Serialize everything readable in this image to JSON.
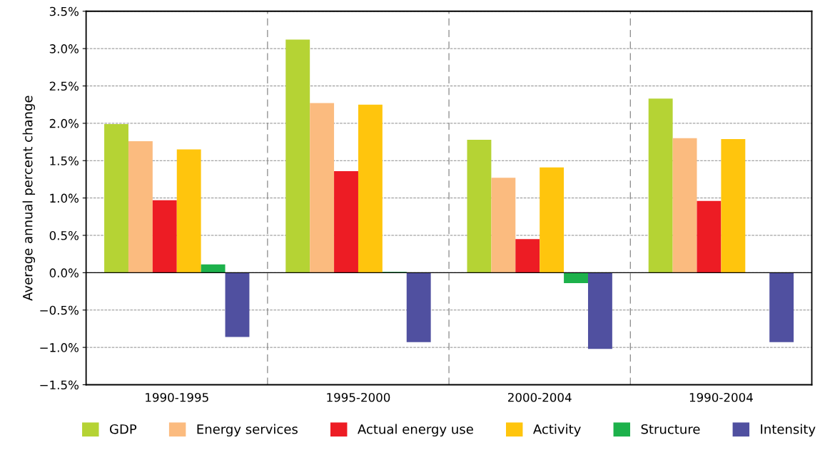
{
  "chart_data": {
    "type": "bar",
    "ylabel": "Average annual percent change",
    "categories": [
      "1990-1995",
      "1995-2000",
      "2000-2004",
      "1990-2004"
    ],
    "series": [
      {
        "name": "GDP",
        "color": "#b5d334",
        "values": [
          1.99,
          3.12,
          1.78,
          2.33
        ]
      },
      {
        "name": "Energy services",
        "color": "#fbbb7f",
        "values": [
          1.76,
          2.27,
          1.27,
          1.8
        ]
      },
      {
        "name": "Actual energy use",
        "color": "#ed1c24",
        "values": [
          0.97,
          1.36,
          0.45,
          0.96
        ]
      },
      {
        "name": "Activity",
        "color": "#ffc50d",
        "values": [
          1.65,
          2.25,
          1.41,
          1.79
        ]
      },
      {
        "name": "Structure",
        "color": "#1db14b",
        "values": [
          0.11,
          0.01,
          -0.14,
          0.0
        ]
      },
      {
        "name": "Intensity",
        "color": "#5050a0",
        "values": [
          -0.86,
          -0.93,
          -1.02,
          -0.93
        ]
      }
    ],
    "ylim": [
      -1.5,
      3.5
    ],
    "yticks": [
      {
        "value": -1.5,
        "label": "−1.5%"
      },
      {
        "value": -1.0,
        "label": "−1.0%"
      },
      {
        "value": -0.5,
        "label": "−0.5%"
      },
      {
        "value": 0,
        "label": "0.0%"
      },
      {
        "value": 0.5,
        "label": "0.5%"
      },
      {
        "value": 1.0,
        "label": "1.0%"
      },
      {
        "value": 1.5,
        "label": "1.5%"
      },
      {
        "value": 2.0,
        "label": "2.0%"
      },
      {
        "value": 2.5,
        "label": "2.5%"
      },
      {
        "value": 3.0,
        "label": "3.0%"
      },
      {
        "value": 3.5,
        "label": "3.5%"
      }
    ],
    "grid": true,
    "legend": "bottom"
  }
}
